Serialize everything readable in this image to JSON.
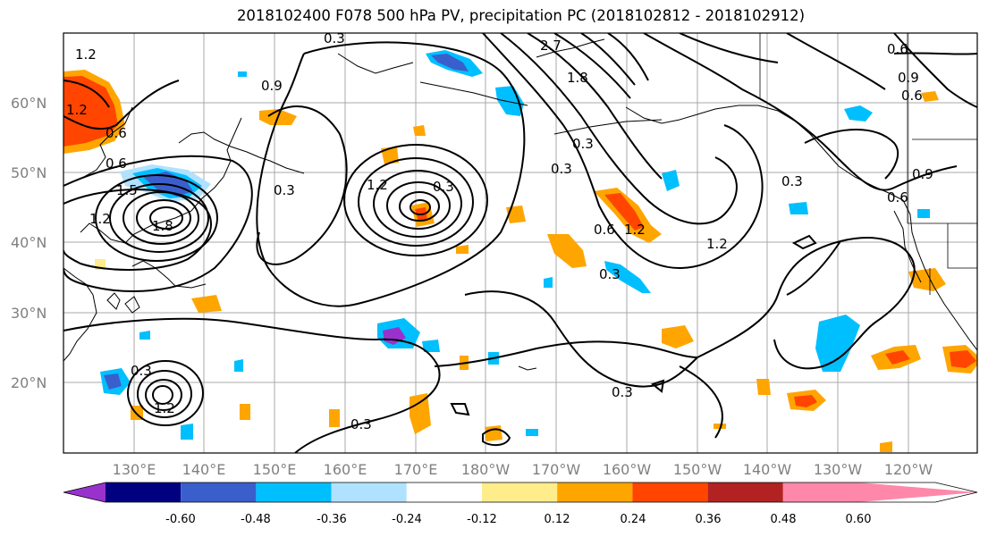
{
  "title": "2018102400 F078 500 hPa PV, precipitation PC (2018102812 - 2018102912)",
  "lat_labels": [
    "60°N",
    "50°N",
    "40°N",
    "30°N",
    "20°N"
  ],
  "lon_labels": [
    "130°E",
    "140°E",
    "150°E",
    "160°E",
    "170°E",
    "180°W",
    "170°W",
    "160°W",
    "150°W",
    "140°W",
    "130°W",
    "120°W"
  ],
  "contour_labels": [
    "1.2",
    "0.3",
    "0.9",
    "1.2",
    "0.6",
    "0.6",
    "1.2",
    "1.5",
    "1.8",
    "0.3",
    "1.2",
    "0.3",
    "0.3",
    "1.8",
    "0.3",
    "0.6",
    "0.3",
    "1.2",
    "1.2",
    "0.3",
    "0.6",
    "0.9",
    "0.6",
    "0.6",
    "0.9",
    "0.3",
    "0.3",
    "1.2",
    "0.3",
    "2.7"
  ],
  "colorbar": {
    "ticks": [
      "-0.60",
      "-0.48",
      "-0.36",
      "-0.24",
      "-0.12",
      "0.12",
      "0.24",
      "0.36",
      "0.48",
      "0.60"
    ],
    "colors": [
      "#9932cc",
      "#000080",
      "#3a5fcd",
      "#00bfff",
      "#b0e2ff",
      "#ffffff",
      "#ffec8b",
      "#ffa500",
      "#ff4500",
      "#b22222",
      "#ff88aa"
    ]
  }
}
